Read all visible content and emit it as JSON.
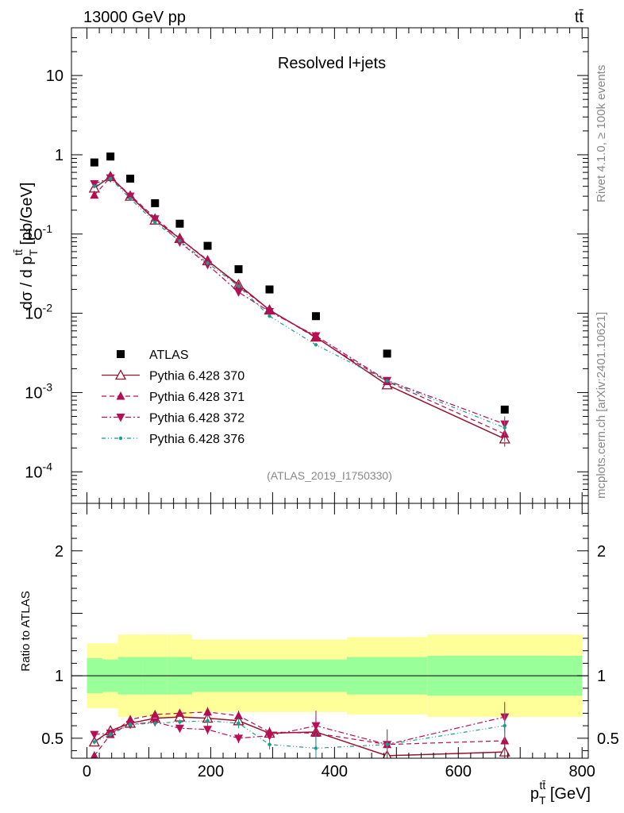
{
  "header": {
    "energy": "13000 GeV pp",
    "process": "tt̄"
  },
  "side": {
    "rivet": "Rivet 4.1.0, ≥ 100k events",
    "source": "mcplots.cern.ch [arXiv:2401.10621]"
  },
  "colors": {
    "atlas": "#000000",
    "p370": "#99112c",
    "p371": "#b30e4f",
    "p372": "#b80e56",
    "p376": "#1a9e8a",
    "band_inner": "#99ff99",
    "band_outer": "#ffff99"
  },
  "chart_data": [
    {
      "type": "scatter",
      "title": "Resolved l+jets",
      "ylabel": "dσ / d p_T^{tt̄} [pb/GeV]",
      "yscale": "log",
      "ylim": [
        4e-05,
        40
      ],
      "xlim": [
        -25,
        810
      ],
      "analysis": "(ATLAS_2019_I1750330)",
      "y_tick_labels": [
        "10^{-4}",
        "10^{-3}",
        "10^{-2}",
        "10^{-1}",
        "1",
        "10"
      ],
      "x": [
        12,
        38,
        70,
        110,
        150,
        195,
        245,
        295,
        370,
        485,
        675
      ],
      "series": [
        {
          "name": "ATLAS",
          "marker": "square",
          "values": [
            0.8,
            0.95,
            0.5,
            0.245,
            0.135,
            0.071,
            0.036,
            0.02,
            0.0092,
            0.0031,
            0.00061
          ]
        },
        {
          "name": "Pythia 6.428 370",
          "marker": "triangle-up-open",
          "line": "solid",
          "values": [
            0.38,
            0.53,
            0.3,
            0.15,
            0.088,
            0.046,
            0.023,
            0.011,
            0.005,
            0.00125,
            0.00026
          ]
        },
        {
          "name": "Pythia 6.428 371",
          "marker": "triangle-up",
          "line": "dashed",
          "values": [
            0.31,
            0.52,
            0.31,
            0.16,
            0.088,
            0.047,
            0.022,
            0.011,
            0.0049,
            0.00138,
            0.0003
          ]
        },
        {
          "name": "Pythia 6.428 372",
          "marker": "triangle-down",
          "line": "dashdot",
          "values": [
            0.43,
            0.51,
            0.3,
            0.155,
            0.079,
            0.041,
            0.0185,
            0.0105,
            0.0052,
            0.00142,
            0.0004
          ]
        },
        {
          "name": "Pythia 6.428 376",
          "marker": "star",
          "line": "dashdotdot",
          "values": [
            0.4,
            0.5,
            0.28,
            0.14,
            0.082,
            0.043,
            0.022,
            0.0092,
            0.004,
            0.0014,
            0.00036
          ]
        }
      ]
    },
    {
      "type": "line",
      "ylabel": "Ratio to ATLAS",
      "xlabel": "p_T^{tt̄} [GeV]",
      "ylim": [
        0.34,
        2.38
      ],
      "xlim": [
        -25,
        810
      ],
      "x_tick_labels": [
        "0",
        "200",
        "400",
        "600",
        "800"
      ],
      "y_tick_labels": [
        "0.5",
        "1",
        "2"
      ],
      "bins": [
        0,
        25,
        50,
        90,
        130,
        170,
        220,
        270,
        320,
        420,
        550,
        800
      ],
      "band_inner": [
        0.14,
        0.13,
        0.15,
        0.15,
        0.15,
        0.13,
        0.13,
        0.13,
        0.13,
        0.15,
        0.16
      ],
      "band_outer": [
        0.26,
        0.26,
        0.33,
        0.33,
        0.33,
        0.29,
        0.29,
        0.29,
        0.29,
        0.31,
        0.33
      ],
      "x": [
        12,
        38,
        70,
        110,
        150,
        195,
        245,
        295,
        370,
        485,
        675
      ],
      "series": [
        {
          "name": "Pythia 6.428 370",
          "values": [
            0.47,
            0.56,
            0.62,
            0.66,
            0.67,
            0.66,
            0.64,
            0.54,
            0.55,
            0.36,
            0.39
          ]
        },
        {
          "name": "Pythia 6.428 371",
          "values": [
            0.36,
            0.53,
            0.65,
            0.69,
            0.7,
            0.71,
            0.68,
            0.55,
            0.54,
            0.45,
            0.48
          ]
        },
        {
          "name": "Pythia 6.428 372",
          "values": [
            0.53,
            0.54,
            0.61,
            0.63,
            0.58,
            0.57,
            0.5,
            0.52,
            0.6,
            0.45,
            0.67
          ]
        },
        {
          "name": "Pythia 6.428 376",
          "values": [
            0.47,
            0.53,
            0.61,
            0.62,
            0.63,
            0.64,
            0.62,
            0.45,
            0.42,
            0.45,
            0.6
          ]
        }
      ]
    }
  ]
}
